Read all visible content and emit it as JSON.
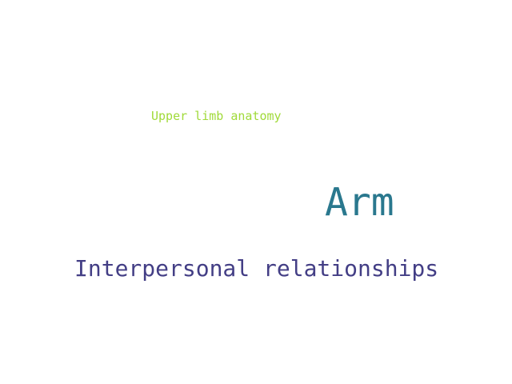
{
  "word_cloud": {
    "words": [
      {
        "text": "Upper limb anatomy",
        "color": "#a0da39"
      },
      {
        "text": "Arm",
        "color": "#2a788e"
      },
      {
        "text": "Interpersonal relationships",
        "color": "#433e85"
      }
    ]
  }
}
